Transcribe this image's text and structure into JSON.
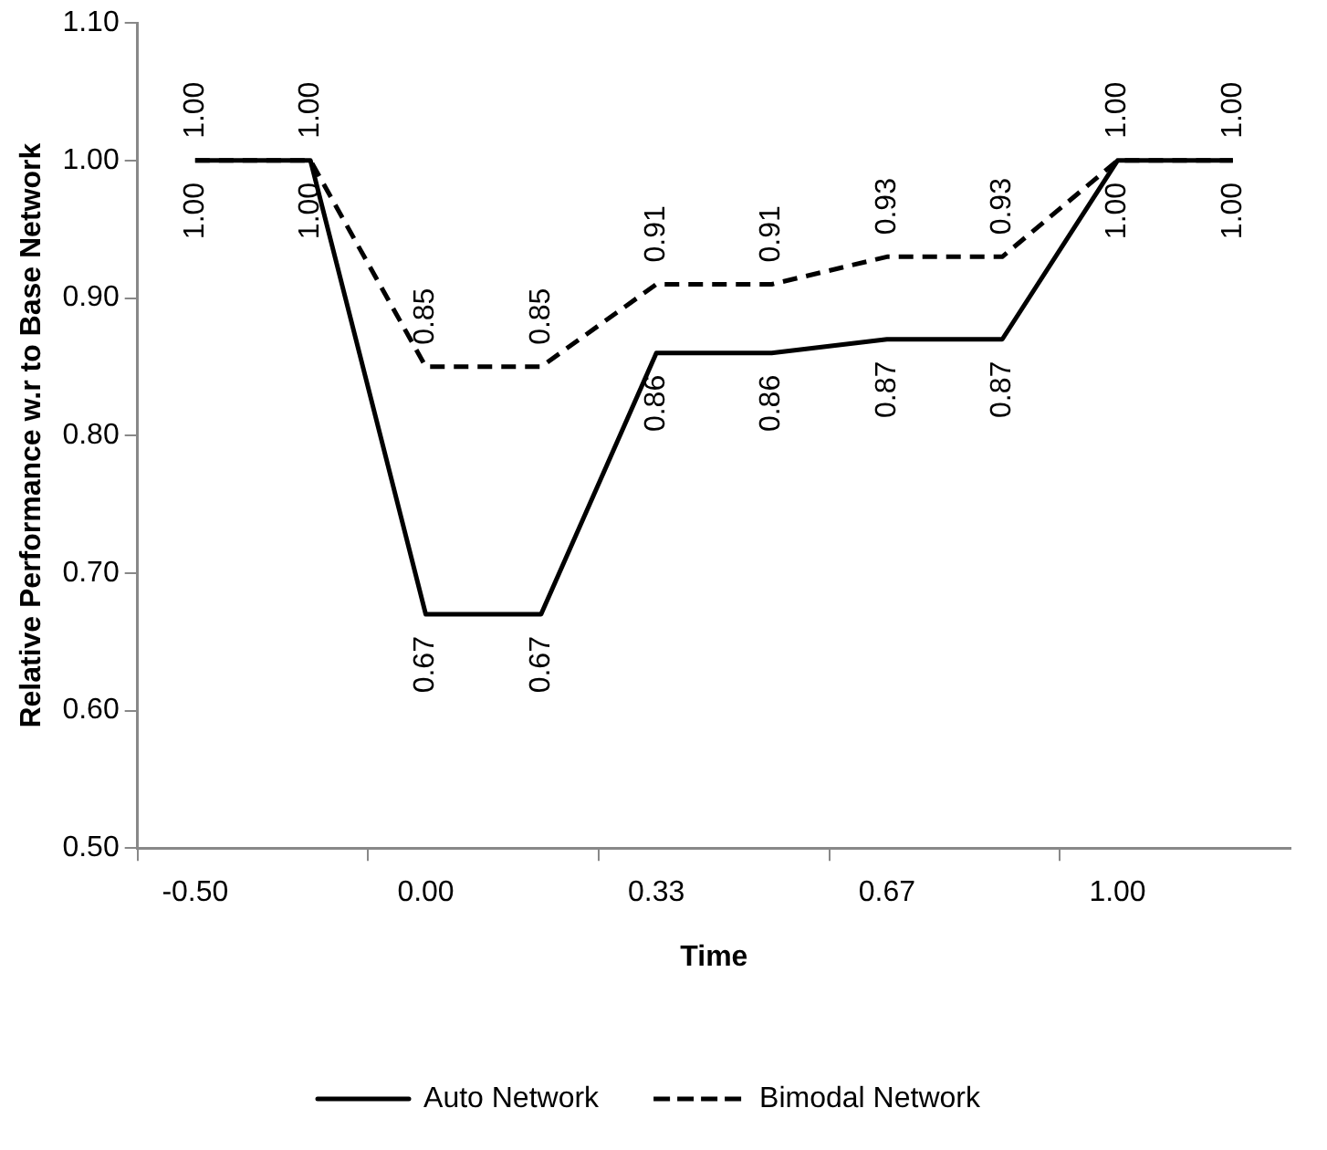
{
  "chart_data": {
    "type": "line",
    "xlabel": "Time",
    "ylabel": "Relative Performance w.r to Base Network",
    "categories": [
      "-0.50",
      null,
      "0.00",
      null,
      "0.33",
      null,
      "0.67",
      null,
      "1.00",
      null
    ],
    "series": [
      {
        "name": "Auto Network",
        "color": "#000000",
        "line_style": "solid",
        "values": [
          1,
          1,
          0.67,
          0.67,
          0.86,
          0.86,
          0.87,
          0.87,
          1,
          1
        ],
        "value_labels": [
          "1.00",
          "1.00",
          "0.67",
          "0.67",
          "0.86",
          "0.86",
          "0.87",
          "0.87",
          "1.00",
          "1.00"
        ]
      },
      {
        "name": "Bimodal Network",
        "color": "#000000",
        "line_style": "dashed",
        "values": [
          1,
          1,
          0.85,
          0.85,
          0.91,
          0.91,
          0.93,
          0.93,
          1,
          1
        ],
        "value_labels": [
          "1.00",
          "1.00",
          "0.85",
          "0.85",
          "0.91",
          "0.91",
          "0.93",
          "0.93",
          "1.00",
          "1.00"
        ]
      }
    ],
    "ylim": [
      0.5,
      1.1
    ],
    "yticks": [
      {
        "value": 0.5,
        "label": "0.50"
      },
      {
        "value": 0.6,
        "label": "0.60"
      },
      {
        "value": 0.7,
        "label": "0.70"
      },
      {
        "value": 0.8,
        "label": "0.80"
      },
      {
        "value": 0.9,
        "label": "0.90"
      },
      {
        "value": 1.0,
        "label": "1.00"
      },
      {
        "value": 1.1,
        "label": "1.10"
      }
    ],
    "grid": false,
    "legend": "bottom",
    "marker": "none"
  }
}
